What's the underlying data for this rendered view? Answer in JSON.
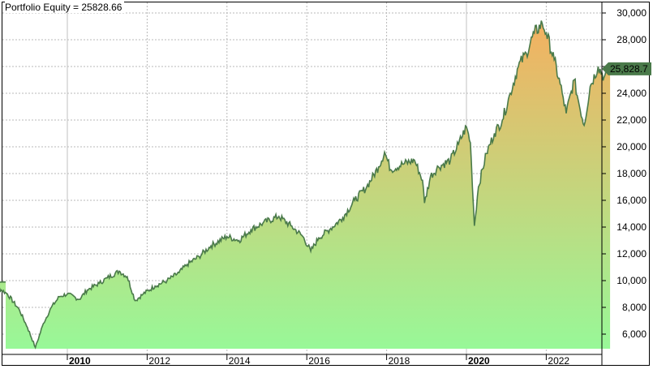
{
  "title": "Portfolio Equity = 25828.66",
  "last_value_label": "25,828.7",
  "colors": {
    "line": "#4a7a4a",
    "fill_top": "#f4b060",
    "fill_bottom": "#98f898",
    "grid": "#b8b8b8",
    "marker": "#4a7a4a"
  },
  "y_axis": {
    "ticks": [
      "30,000",
      "28,000",
      "26,000",
      "24,000",
      "22,000",
      "20,000",
      "18,000",
      "16,000",
      "14,000",
      "12,000",
      "10,000",
      "8,000",
      "6,000"
    ],
    "visible_labels": [
      "30,000",
      "28,000",
      "24,000",
      "22,000",
      "20,000",
      "18,000",
      "16,000",
      "14,000",
      "12,000",
      "10,000",
      "8,000",
      "6,000"
    ]
  },
  "x_axis": {
    "labels": [
      {
        "text": "2010",
        "bold": true
      },
      {
        "text": "2012",
        "bold": false
      },
      {
        "text": "2014",
        "bold": false
      },
      {
        "text": "2016",
        "bold": false
      },
      {
        "text": "2018",
        "bold": false
      },
      {
        "text": "2020",
        "bold": true
      },
      {
        "text": "2022",
        "bold": false
      }
    ]
  },
  "chart_data": {
    "type": "area",
    "title": "Portfolio Equity = 25828.66",
    "xlabel": "",
    "ylabel": "",
    "ylim": [
      5000,
      30500
    ],
    "xlim": [
      2007.9,
      2023.6
    ],
    "grid": true,
    "legend": "none",
    "y_axis_position": "right",
    "y_ticks": [
      6000,
      8000,
      10000,
      12000,
      14000,
      16000,
      18000,
      20000,
      22000,
      24000,
      26000,
      28000,
      30000
    ],
    "x_ticks": [
      2010,
      2012,
      2014,
      2016,
      2018,
      2020,
      2022
    ],
    "last_value": 25828.66,
    "series": [
      {
        "name": "Portfolio Equity",
        "x": [
          2007.95,
          2008.2,
          2008.5,
          2008.8,
          2009.0,
          2009.2,
          2009.4,
          2009.6,
          2009.8,
          2010.0,
          2010.3,
          2010.5,
          2010.8,
          2011.0,
          2011.3,
          2011.5,
          2011.7,
          2011.9,
          2012.2,
          2012.5,
          2012.8,
          2013.0,
          2013.3,
          2013.6,
          2014.0,
          2014.3,
          2014.6,
          2014.9,
          2015.3,
          2015.6,
          2015.9,
          2016.1,
          2016.3,
          2016.6,
          2016.9,
          2017.2,
          2017.5,
          2017.8,
          2017.95,
          2018.1,
          2018.4,
          2018.7,
          2018.9,
          2018.95,
          2019.1,
          2019.3,
          2019.6,
          2019.8,
          2020.0,
          2020.1,
          2020.2,
          2020.3,
          2020.5,
          2020.7,
          2020.9,
          2021.1,
          2021.3,
          2021.5,
          2021.7,
          2021.9,
          2022.0,
          2022.2,
          2022.4,
          2022.5,
          2022.7,
          2022.8,
          2022.95,
          2023.1,
          2023.3,
          2023.45,
          2023.6
        ],
        "values": [
          9900,
          9600,
          9000,
          7800,
          6500,
          5000,
          6800,
          8000,
          8800,
          9000,
          8600,
          9300,
          9800,
          10200,
          10700,
          10300,
          8500,
          9000,
          9600,
          10000,
          10600,
          11200,
          11800,
          12600,
          13300,
          13000,
          13800,
          14300,
          14800,
          14100,
          13300,
          12200,
          13200,
          13900,
          14700,
          16000,
          17000,
          18500,
          19600,
          18300,
          18700,
          19000,
          17500,
          15800,
          17800,
          18500,
          19000,
          20200,
          21500,
          20300,
          14100,
          17000,
          19500,
          21000,
          22000,
          24000,
          26000,
          27000,
          28500,
          29200,
          28500,
          26500,
          24000,
          22500,
          25000,
          23500,
          21600,
          24500,
          26000,
          25200,
          25828.66
        ]
      }
    ]
  }
}
